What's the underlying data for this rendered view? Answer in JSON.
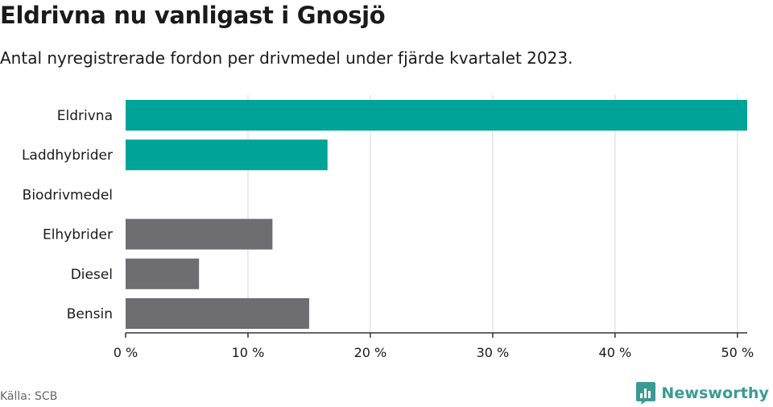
{
  "title": "Eldrivna nu vanligast i Gnosjö",
  "subtitle": "Antal nyregistrerade fordon per drivmedel under fjärde kvartalet 2023.",
  "source": "Källa: SCB",
  "brand": {
    "name": "Newsworthy",
    "logo_icon": "bar-chart-speech-bubble-icon"
  },
  "colors": {
    "highlight": "#00a397",
    "default": "#6e6d72",
    "grid": "#d9d9d9",
    "axis": "#333333",
    "brand": "#3a9b94"
  },
  "chart_data": {
    "type": "bar",
    "orientation": "horizontal",
    "title": "Eldrivna nu vanligast i Gnosjö",
    "subtitle": "Antal nyregistrerade fordon per drivmedel under fjärde kvartalet 2023.",
    "xlabel": "",
    "ylabel": "",
    "categories": [
      "Eldrivna",
      "Laddhybrider",
      "Biodrivmedel",
      "Elhybrider",
      "Diesel",
      "Bensin"
    ],
    "values": [
      50.8,
      16.5,
      0,
      12,
      6,
      15
    ],
    "highlighted": [
      true,
      true,
      false,
      false,
      false,
      false
    ],
    "xlim": [
      0,
      50.8
    ],
    "ticks": [
      0,
      10,
      20,
      30,
      40,
      50
    ],
    "tick_labels": [
      "0 %",
      "10 %",
      "20 %",
      "30 %",
      "40 %",
      "50 %"
    ],
    "grid": true,
    "legend": "none"
  }
}
